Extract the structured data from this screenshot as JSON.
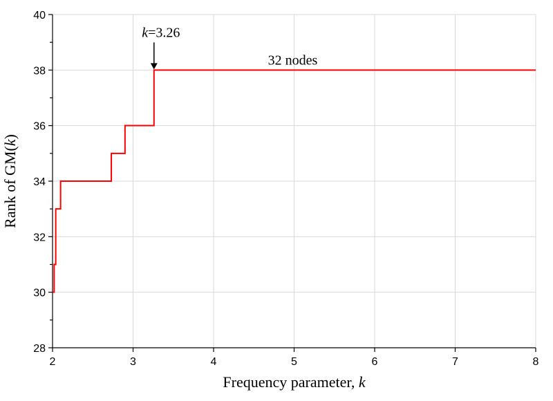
{
  "chart_data": {
    "type": "line",
    "xlabel": "Frequency parameter, ",
    "xlabel_var": "k",
    "ylabel": "Rank of  GM(",
    "ylabel_var": "k",
    "ylabel_end": ")",
    "xlim": [
      2,
      8
    ],
    "ylim": [
      28,
      40
    ],
    "xticks": [
      2,
      3,
      4,
      5,
      6,
      7,
      8
    ],
    "yticks": [
      28,
      30,
      32,
      34,
      36,
      38,
      40
    ],
    "grid": true,
    "series": [
      {
        "color": "#ff0000",
        "step": true,
        "points": [
          [
            2.0,
            30
          ],
          [
            2.02,
            31
          ],
          [
            2.04,
            33
          ],
          [
            2.1,
            34
          ],
          [
            2.73,
            35
          ],
          [
            2.9,
            36
          ],
          [
            3.26,
            38
          ],
          [
            8.0,
            38
          ]
        ]
      }
    ],
    "annotations": {
      "arrow_label_var": "k",
      "arrow_label_value": "=3.26",
      "arrow_x": 3.26,
      "arrow_y": 38,
      "series_label": "32 nodes",
      "series_label_x": 5.0,
      "series_label_y": 38
    }
  }
}
